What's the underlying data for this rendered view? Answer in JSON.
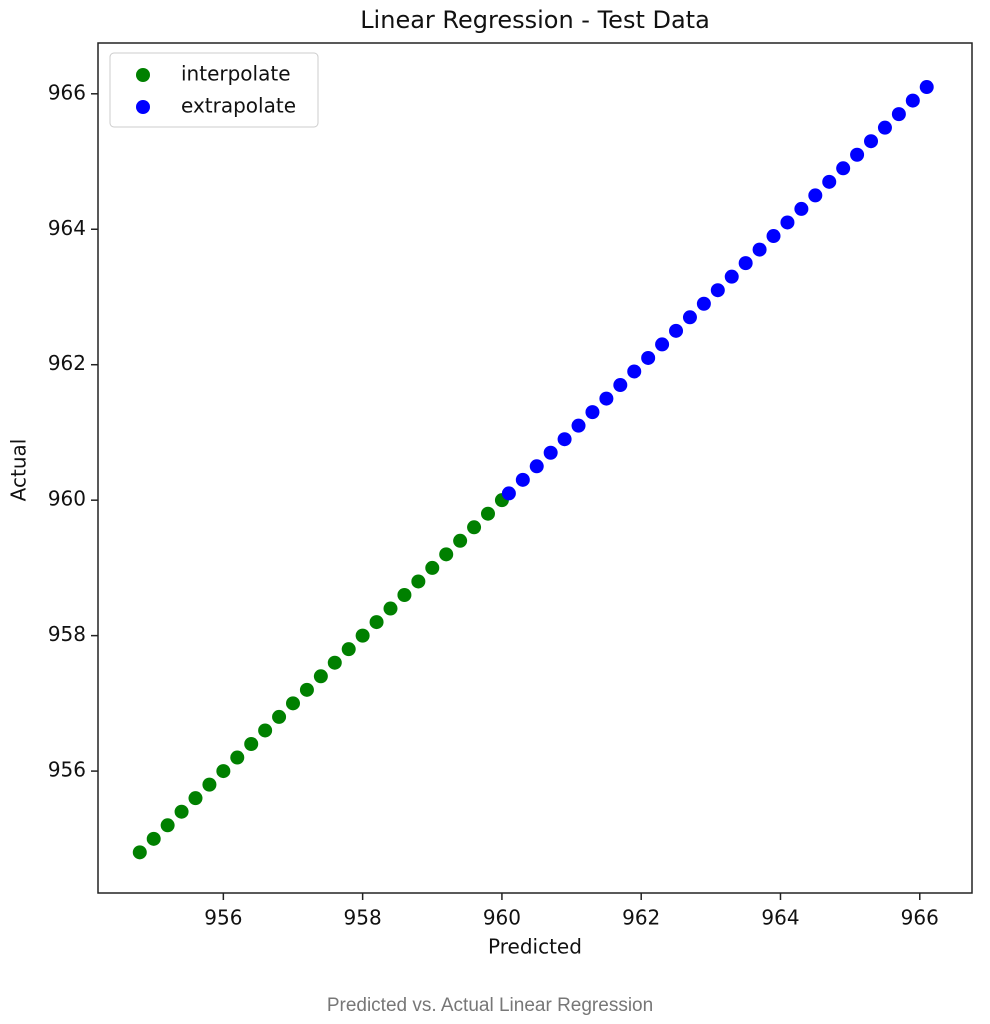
{
  "chart_data": {
    "type": "scatter",
    "title": "Linear Regression - Test Data",
    "x_label": "Predicted",
    "y_label": "Actual",
    "caption": "Predicted vs. Actual Linear Regression",
    "xlim": [
      954.2,
      966.75
    ],
    "ylim": [
      954.2,
      966.75
    ],
    "xticks": [
      956,
      958,
      960,
      962,
      964,
      966
    ],
    "yticks": [
      956,
      958,
      960,
      962,
      964,
      966
    ],
    "legend": "upper-left",
    "series": [
      {
        "name": "interpolate",
        "color": "#008000",
        "x": [
          954.8,
          955.0,
          955.2,
          955.4,
          955.6,
          955.8,
          956.0,
          956.2,
          956.4,
          956.6,
          956.8,
          957.0,
          957.2,
          957.4,
          957.6,
          957.8,
          958.0,
          958.2,
          958.4,
          958.6,
          958.8,
          959.0,
          959.2,
          959.4,
          959.6,
          959.8,
          960.0
        ],
        "values": [
          954.8,
          955.0,
          955.2,
          955.4,
          955.6,
          955.8,
          956.0,
          956.2,
          956.4,
          956.6,
          956.8,
          957.0,
          957.2,
          957.4,
          957.6,
          957.8,
          958.0,
          958.2,
          958.4,
          958.6,
          958.8,
          959.0,
          959.2,
          959.4,
          959.6,
          959.8,
          960.0
        ]
      },
      {
        "name": "extrapolate",
        "color": "#0000ff",
        "x": [
          960.1,
          960.3,
          960.5,
          960.7,
          960.9,
          961.1,
          961.3,
          961.5,
          961.7,
          961.9,
          962.1,
          962.3,
          962.5,
          962.7,
          962.9,
          963.1,
          963.3,
          963.5,
          963.7,
          963.9,
          964.1,
          964.3,
          964.5,
          964.7,
          964.9,
          965.1,
          965.3,
          965.5,
          965.7,
          965.9,
          966.1
        ],
        "values": [
          960.1,
          960.3,
          960.5,
          960.7,
          960.9,
          961.1,
          961.3,
          961.5,
          961.7,
          961.9,
          962.1,
          962.3,
          962.5,
          962.7,
          962.9,
          963.1,
          963.3,
          963.5,
          963.7,
          963.9,
          964.1,
          964.3,
          964.5,
          964.7,
          964.9,
          965.1,
          965.3,
          965.5,
          965.7,
          965.9,
          966.1
        ]
      }
    ]
  }
}
